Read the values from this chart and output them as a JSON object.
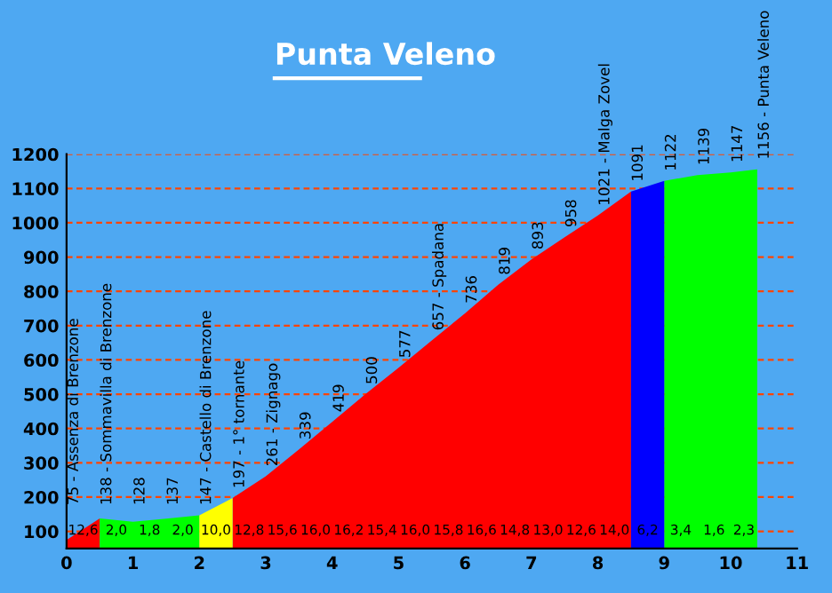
{
  "chart_data": {
    "type": "area",
    "title": "Punta Veleno",
    "x": [
      0,
      0.5,
      1,
      1.5,
      2,
      2.5,
      3,
      3.5,
      4,
      4.5,
      5,
      5.5,
      6,
      6.5,
      7,
      7.5,
      8,
      8.5,
      9,
      9.5,
      10,
      10.4
    ],
    "series": [
      {
        "color": "#ff0000",
        "values": [
          75,
          138,
          null,
          null,
          null,
          197,
          261,
          339,
          419,
          500,
          577,
          657,
          736,
          819,
          893,
          958,
          1021,
          1091,
          null,
          null,
          null,
          null
        ]
      },
      {
        "color": "#00ff00",
        "values": [
          null,
          138,
          128,
          137,
          147,
          null,
          null,
          null,
          null,
          null,
          null,
          null,
          null,
          null,
          null,
          null,
          null,
          null,
          1122,
          1139,
          1147,
          1156
        ]
      },
      {
        "color": "#ffff00",
        "values": [
          null,
          null,
          null,
          null,
          147,
          197,
          null,
          null,
          null,
          null,
          null,
          null,
          null,
          null,
          null,
          null,
          null,
          null,
          null,
          null,
          null,
          null
        ]
      },
      {
        "color": "#0000ff",
        "values": [
          null,
          null,
          null,
          null,
          null,
          null,
          null,
          null,
          null,
          null,
          null,
          null,
          null,
          null,
          null,
          null,
          null,
          1091,
          1122,
          null,
          null,
          null
        ]
      }
    ],
    "xlim": [
      0,
      11
    ],
    "xticks": [
      0,
      1,
      2,
      3,
      4,
      5,
      6,
      7,
      8,
      9,
      10,
      11
    ],
    "ylim": [
      50,
      1200
    ],
    "yticks": [
      100,
      200,
      300,
      400,
      500,
      600,
      700,
      800,
      900,
      1000,
      1100,
      1200
    ],
    "grid": "y",
    "annotations": [
      {
        "text": "75 - Assenza di Brenzone",
        "x": 0,
        "y": 75
      },
      {
        "text": "138 - Sommavilla di Brenzone",
        "x": 0.5,
        "y": 138
      },
      {
        "text": "128",
        "x": 1,
        "y": 128
      },
      {
        "text": "137",
        "x": 1.5,
        "y": 137
      },
      {
        "text": "147 - Castello di Brenzone",
        "x": 2,
        "y": 147
      },
      {
        "text": "197 - 1° tornante",
        "x": 2.5,
        "y": 197
      },
      {
        "text": "261 - Zignago",
        "x": 3,
        "y": 261
      },
      {
        "text": "339",
        "x": 3.5,
        "y": 339
      },
      {
        "text": "419",
        "x": 4,
        "y": 419
      },
      {
        "text": "500",
        "x": 4.5,
        "y": 500
      },
      {
        "text": "577",
        "x": 5,
        "y": 577
      },
      {
        "text": "657 - Spadana",
        "x": 5.5,
        "y": 657
      },
      {
        "text": "736",
        "x": 6,
        "y": 736
      },
      {
        "text": "819",
        "x": 6.5,
        "y": 819
      },
      {
        "text": "893",
        "x": 7,
        "y": 893
      },
      {
        "text": "958",
        "x": 7.5,
        "y": 958
      },
      {
        "text": "1021 - Malga Zovel",
        "x": 8,
        "y": 1021
      },
      {
        "text": "1091",
        "x": 8.5,
        "y": 1091
      },
      {
        "text": "1122",
        "x": 9,
        "y": 1122
      },
      {
        "text": "1139",
        "x": 9.5,
        "y": 1139
      },
      {
        "text": "1147",
        "x": 10,
        "y": 1147
      },
      {
        "text": "1156 - Punta Veleno",
        "x": 10.4,
        "y": 1156
      },
      "12,6",
      "2,0",
      "1,8",
      "2,0",
      "10,0",
      "12,8",
      "15,6",
      "16,0",
      "16,2",
      "15,4",
      "16,0",
      "15,8",
      "16,6",
      "14,8",
      "13,0",
      "12,6",
      "14,0",
      "6,2",
      "3,4",
      "1,6",
      "2,3"
    ]
  }
}
